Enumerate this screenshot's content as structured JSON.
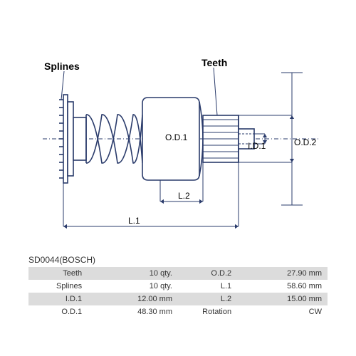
{
  "part_code": "SD0044(BOSCH)",
  "labels": {
    "splines": "Splines",
    "teeth": "Teeth",
    "od1": "O.D.1",
    "od2": "O.D.2",
    "id1": "I.D.1",
    "l1": "L.1",
    "l2": "L.2"
  },
  "specs": {
    "rows": [
      {
        "k1": "Teeth",
        "v1": "10 qty.",
        "k2": "O.D.2",
        "v2": "27.90 mm"
      },
      {
        "k1": "Splines",
        "v1": "10 qty.",
        "k2": "L.1",
        "v2": "58.60 mm"
      },
      {
        "k1": "I.D.1",
        "v1": "12.00 mm",
        "k2": "L.2",
        "v2": "15.00 mm"
      },
      {
        "k1": "O.D.1",
        "v1": "48.30 mm",
        "k2": "Rotation",
        "v2": "CW"
      }
    ]
  },
  "diagram": {
    "stroke": "#2a3b6b",
    "stroke_width": 1.6,
    "dim_stroke": "#2a3b6b",
    "dim_width": 1,
    "dash": "3,2"
  }
}
